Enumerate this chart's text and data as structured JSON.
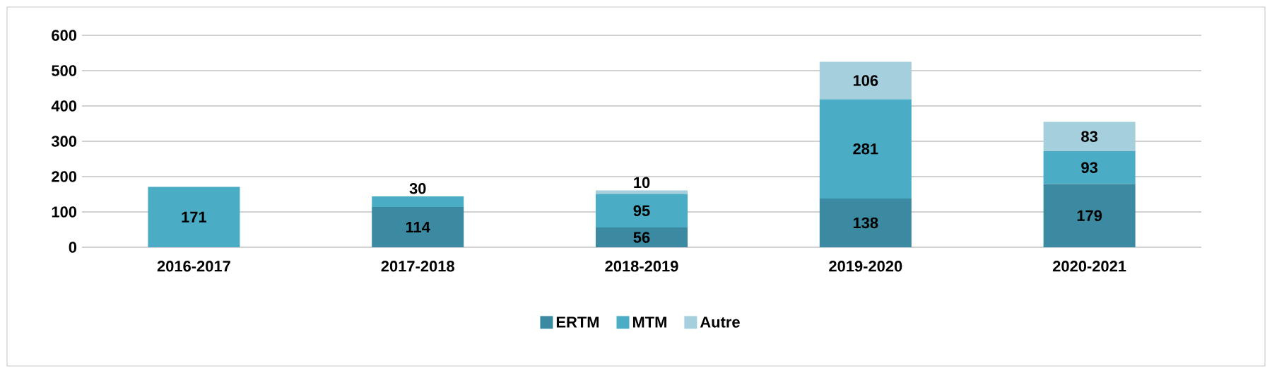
{
  "chart_data": {
    "type": "bar",
    "stacked": true,
    "categories": [
      "2016-2017",
      "2017-2018",
      "2018-2019",
      "2019-2020",
      "2020-2021"
    ],
    "series": [
      {
        "name": "ERTM",
        "color": "#3b8aa1",
        "values": [
          null,
          114,
          56,
          138,
          179
        ]
      },
      {
        "name": "MTM",
        "color": "#4bacc6",
        "values": [
          171,
          30,
          95,
          281,
          93
        ]
      },
      {
        "name": "Autre",
        "color": "#a5cfdc",
        "values": [
          null,
          null,
          10,
          106,
          83
        ]
      }
    ],
    "ylim": [
      0,
      600
    ],
    "yticks": [
      0,
      100,
      200,
      300,
      400,
      500,
      600
    ],
    "grid": "y",
    "legend": "bottom",
    "data_labels": true
  }
}
